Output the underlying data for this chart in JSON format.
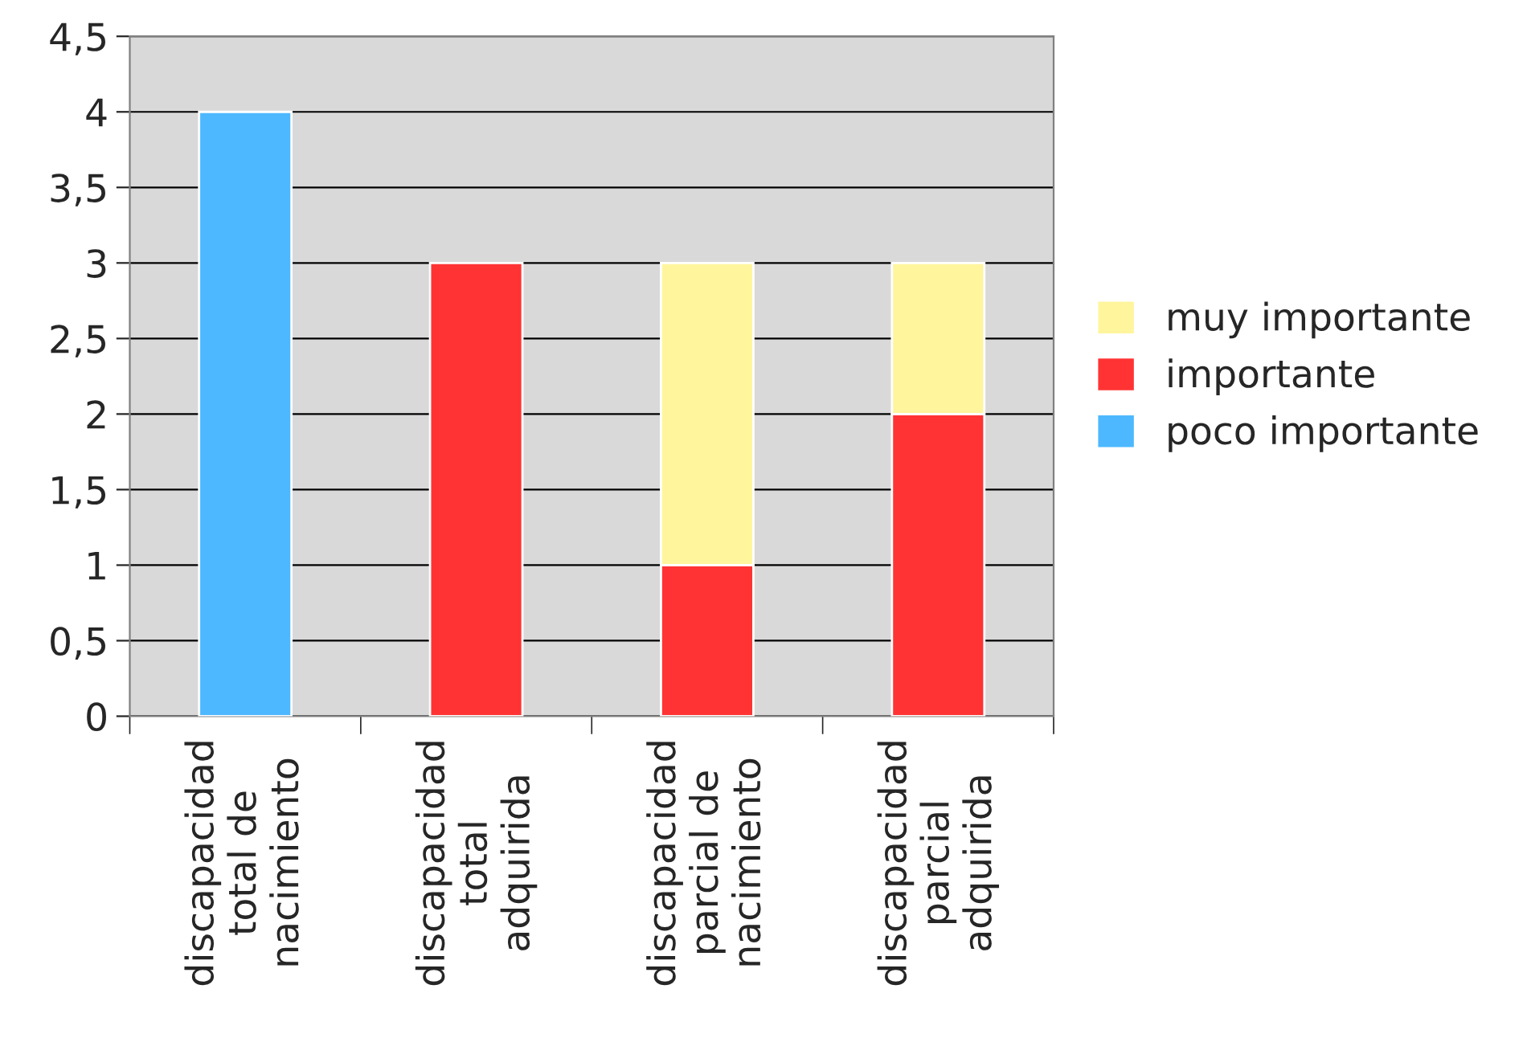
{
  "chart_data": {
    "type": "bar",
    "stacked": true,
    "categories": [
      "discapacidad\ntotal de\nnacimiento",
      "discapacidad\ntotal\nadquirida",
      "discapacidad\nparcial de\nnacimiento",
      "discapacidad\nparcial\nadquirida"
    ],
    "series": [
      {
        "name": "poco importante",
        "color": "#4db8ff",
        "values": [
          4,
          null,
          null,
          null
        ]
      },
      {
        "name": "importante",
        "color": "#ff3333",
        "values": [
          null,
          3,
          1,
          2
        ]
      },
      {
        "name": "muy importante",
        "color": "#fff59d",
        "values": [
          null,
          null,
          2,
          1
        ]
      }
    ],
    "ylim": [
      0,
      4.5
    ],
    "yticks": [
      0,
      {
        "value": 0.5,
        "label": "0,5"
      },
      1,
      {
        "value": 1.5,
        "label": "1,5"
      },
      2,
      {
        "value": 2.5,
        "label": "2,5"
      },
      3,
      {
        "value": 3.5,
        "label": "3,5"
      },
      4,
      {
        "value": 4.5,
        "label": "4,5"
      }
    ],
    "grid": "y",
    "legend": "right"
  }
}
